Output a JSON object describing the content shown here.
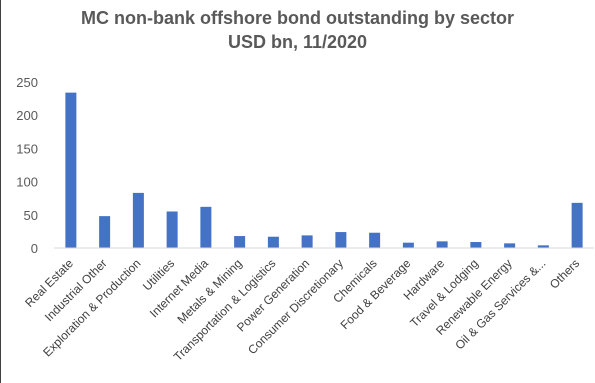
{
  "chart_data": {
    "type": "bar",
    "title": "MC non-bank offshore bond outstanding by sector",
    "subtitle": "USD bn, 11/2020",
    "xlabel": "",
    "ylabel": "",
    "ylim": [
      0,
      250
    ],
    "yticks": [
      0,
      50,
      100,
      150,
      200,
      250
    ],
    "grid": false,
    "legend": "none",
    "bar_color": "#4472C4",
    "categories": [
      "Real Estate",
      "Industrial Other",
      "Exploration & Production",
      "Utilities",
      "Internet Media",
      "Metals & Mining",
      "Transportation & Logistics",
      "Power Generation",
      "Consumer Discretionary",
      "Chemicals",
      "Food & Beverage",
      "Hardware",
      "Travel & Lodging",
      "Renewable Energy",
      "Oil & Gas Services &...",
      "Others"
    ],
    "values": [
      234,
      48,
      83,
      55,
      62,
      18,
      17,
      19,
      24,
      23,
      8,
      10,
      9,
      7,
      4,
      68
    ]
  }
}
